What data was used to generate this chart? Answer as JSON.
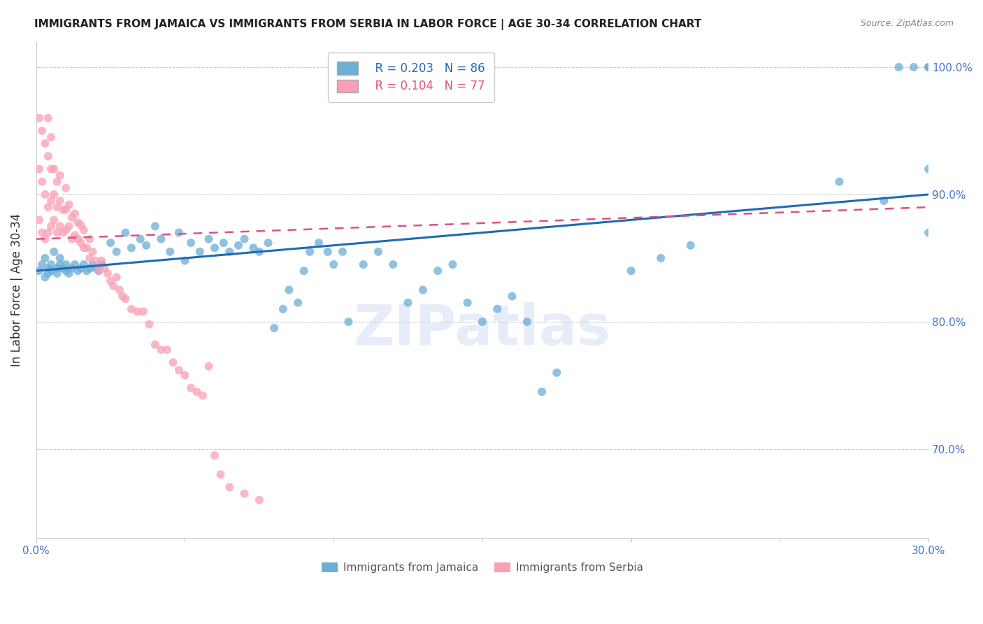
{
  "title": "IMMIGRANTS FROM JAMAICA VS IMMIGRANTS FROM SERBIA IN LABOR FORCE | AGE 30-34 CORRELATION CHART",
  "source": "Source: ZipAtlas.com",
  "xlabel": "",
  "ylabel": "In Labor Force | Age 30-34",
  "r_jamaica": 0.203,
  "n_jamaica": 86,
  "r_serbia": 0.104,
  "n_serbia": 77,
  "xlim": [
    0.0,
    0.3
  ],
  "ylim": [
    0.63,
    1.02
  ],
  "yticks": [
    0.7,
    0.8,
    0.9,
    1.0
  ],
  "ytick_labels": [
    "70.0%",
    "80.0%",
    "90.0%",
    "100.0%"
  ],
  "xticks": [
    0.0,
    0.05,
    0.1,
    0.15,
    0.2,
    0.25,
    0.3
  ],
  "color_jamaica": "#6baed6",
  "color_serbia": "#fa9fb5",
  "trendline_jamaica": "#1f6ab5",
  "trendline_serbia": "#e05080",
  "background_color": "#ffffff",
  "grid_color": "#cccccc",
  "label_color": "#4472c4",
  "jamaica_x": [
    0.001,
    0.002,
    0.003,
    0.003,
    0.004,
    0.004,
    0.005,
    0.005,
    0.006,
    0.007,
    0.007,
    0.008,
    0.008,
    0.009,
    0.01,
    0.01,
    0.011,
    0.012,
    0.013,
    0.014,
    0.015,
    0.016,
    0.017,
    0.018,
    0.019,
    0.02,
    0.021,
    0.022,
    0.025,
    0.027,
    0.03,
    0.032,
    0.035,
    0.037,
    0.04,
    0.042,
    0.045,
    0.048,
    0.05,
    0.052,
    0.055,
    0.058,
    0.06,
    0.063,
    0.065,
    0.068,
    0.07,
    0.073,
    0.075,
    0.078,
    0.08,
    0.083,
    0.085,
    0.088,
    0.09,
    0.092,
    0.095,
    0.098,
    0.1,
    0.103,
    0.105,
    0.11,
    0.115,
    0.12,
    0.125,
    0.13,
    0.135,
    0.14,
    0.145,
    0.15,
    0.155,
    0.16,
    0.165,
    0.17,
    0.175,
    0.2,
    0.21,
    0.22,
    0.27,
    0.285,
    0.29,
    0.295,
    0.3,
    0.3,
    0.3,
    0.3
  ],
  "jamaica_y": [
    0.84,
    0.845,
    0.835,
    0.85,
    0.842,
    0.838,
    0.845,
    0.84,
    0.855,
    0.842,
    0.838,
    0.85,
    0.845,
    0.842,
    0.84,
    0.845,
    0.838,
    0.842,
    0.845,
    0.84,
    0.842,
    0.845,
    0.84,
    0.842,
    0.845,
    0.842,
    0.84,
    0.845,
    0.862,
    0.855,
    0.87,
    0.858,
    0.865,
    0.86,
    0.875,
    0.865,
    0.855,
    0.87,
    0.848,
    0.862,
    0.855,
    0.865,
    0.858,
    0.862,
    0.855,
    0.86,
    0.865,
    0.858,
    0.855,
    0.862,
    0.795,
    0.81,
    0.825,
    0.815,
    0.84,
    0.855,
    0.862,
    0.855,
    0.845,
    0.855,
    0.8,
    0.845,
    0.855,
    0.845,
    0.815,
    0.825,
    0.84,
    0.845,
    0.815,
    0.8,
    0.81,
    0.82,
    0.8,
    0.745,
    0.76,
    0.84,
    0.85,
    0.86,
    0.91,
    0.895,
    1.0,
    1.0,
    1.0,
    1.0,
    0.92,
    0.87
  ],
  "serbia_x": [
    0.001,
    0.001,
    0.001,
    0.002,
    0.002,
    0.002,
    0.003,
    0.003,
    0.003,
    0.004,
    0.004,
    0.004,
    0.004,
    0.005,
    0.005,
    0.005,
    0.005,
    0.006,
    0.006,
    0.006,
    0.007,
    0.007,
    0.007,
    0.008,
    0.008,
    0.008,
    0.009,
    0.009,
    0.01,
    0.01,
    0.01,
    0.011,
    0.011,
    0.012,
    0.012,
    0.013,
    0.013,
    0.014,
    0.014,
    0.015,
    0.015,
    0.016,
    0.016,
    0.017,
    0.018,
    0.018,
    0.019,
    0.02,
    0.021,
    0.022,
    0.023,
    0.024,
    0.025,
    0.026,
    0.027,
    0.028,
    0.029,
    0.03,
    0.032,
    0.034,
    0.036,
    0.038,
    0.04,
    0.042,
    0.044,
    0.046,
    0.048,
    0.05,
    0.052,
    0.054,
    0.056,
    0.058,
    0.06,
    0.062,
    0.065,
    0.07,
    0.075
  ],
  "serbia_y": [
    0.88,
    0.92,
    0.96,
    0.87,
    0.91,
    0.95,
    0.865,
    0.9,
    0.94,
    0.87,
    0.89,
    0.93,
    0.96,
    0.875,
    0.895,
    0.92,
    0.945,
    0.88,
    0.9,
    0.92,
    0.87,
    0.89,
    0.91,
    0.875,
    0.895,
    0.915,
    0.87,
    0.888,
    0.872,
    0.888,
    0.905,
    0.875,
    0.892,
    0.865,
    0.882,
    0.868,
    0.885,
    0.865,
    0.878,
    0.862,
    0.876,
    0.858,
    0.872,
    0.858,
    0.85,
    0.865,
    0.855,
    0.848,
    0.84,
    0.848,
    0.842,
    0.838,
    0.832,
    0.828,
    0.835,
    0.825,
    0.82,
    0.818,
    0.81,
    0.808,
    0.808,
    0.798,
    0.782,
    0.778,
    0.778,
    0.768,
    0.762,
    0.758,
    0.748,
    0.745,
    0.742,
    0.765,
    0.695,
    0.68,
    0.67,
    0.665,
    0.66
  ]
}
